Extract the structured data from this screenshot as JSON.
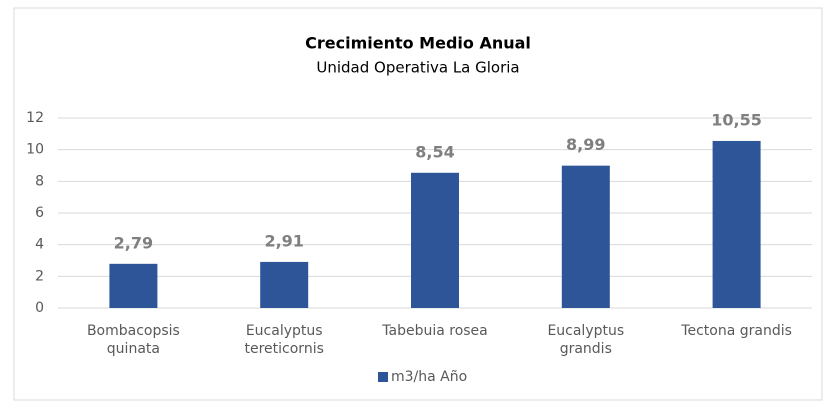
{
  "chart_data": {
    "type": "bar",
    "title": "Crecimiento Medio Anual",
    "subtitle": "Unidad Operativa La Gloria",
    "categories": [
      "Bombacopsis quinata",
      "Eucalyptus tereticornis",
      "Tabebuia rosea",
      "Eucalyptus grandis",
      "Tectona grandis"
    ],
    "series": [
      {
        "name": "m3/ha Año",
        "color": "#2e5597",
        "values": [
          2.79,
          2.91,
          8.54,
          8.99,
          10.55
        ],
        "value_labels": [
          "2,79",
          "2,91",
          "8,54",
          "8,99",
          "10,55"
        ]
      }
    ],
    "ylim": [
      0,
      12
    ],
    "yticks": [
      0,
      2,
      4,
      6,
      8,
      10,
      12
    ],
    "grid": true,
    "legend": "bottom"
  }
}
